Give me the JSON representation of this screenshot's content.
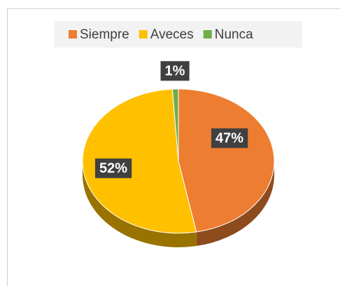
{
  "chart_data": {
    "type": "pie",
    "categories": [
      "Siempre",
      "Aveces",
      "Nunca"
    ],
    "values": [
      47,
      52,
      1
    ],
    "value_labels": [
      "47%",
      "52%",
      "1%"
    ],
    "colors": [
      "#ED7D31",
      "#FFC000",
      "#70AD47"
    ],
    "legend": "top"
  }
}
